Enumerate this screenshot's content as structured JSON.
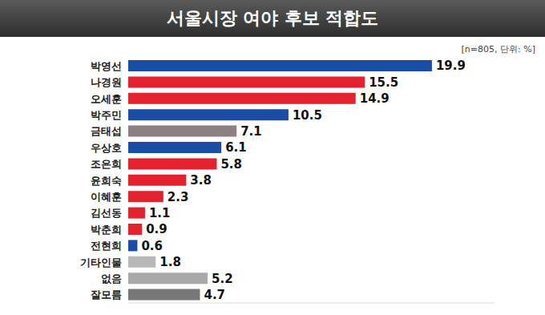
{
  "chart_data": {
    "type": "bar",
    "title": "서울시장 여야 후보 적합도",
    "subtitle": "[n=805, 단위: %]",
    "orientation": "horizontal",
    "categories": [
      "박영선",
      "나경원",
      "오세훈",
      "박주민",
      "금태섭",
      "우상호",
      "조은희",
      "윤희숙",
      "이혜훈",
      "김선동",
      "박춘희",
      "전현희",
      "기타인물",
      "없음",
      "잘모름"
    ],
    "values": [
      19.9,
      15.5,
      14.9,
      10.5,
      7.1,
      6.1,
      5.8,
      3.8,
      2.3,
      1.1,
      0.9,
      0.6,
      1.8,
      5.2,
      4.7
    ],
    "colors": [
      "#1a4ea6",
      "#e3212f",
      "#e3212f",
      "#1a4ea6",
      "#8c8080",
      "#1a4ea6",
      "#e3212f",
      "#e3212f",
      "#e3212f",
      "#e3212f",
      "#e3212f",
      "#1a4ea6",
      "#b8b8b8",
      "#a9a9a9",
      "#777777"
    ],
    "xlim": [
      0,
      24
    ],
    "data_labels": true,
    "tick_labels": "y",
    "grid": false
  }
}
